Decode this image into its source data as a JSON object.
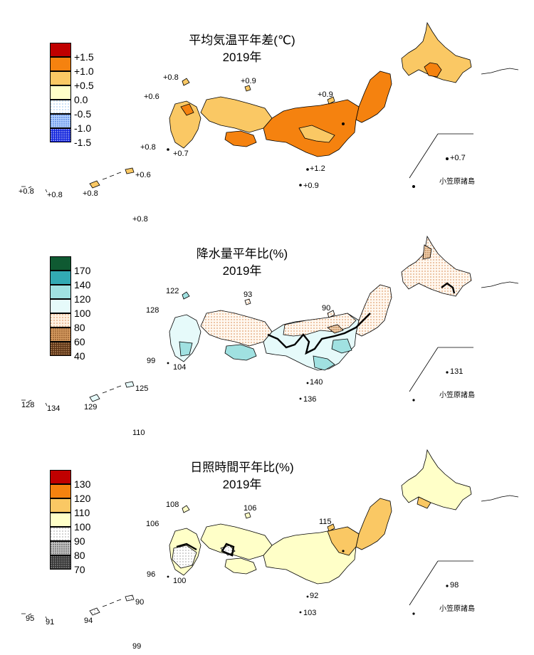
{
  "panels": [
    {
      "title": "平均気温平年差(℃)",
      "year": "2019年",
      "legend": [
        {
          "label": "+1.5",
          "color": "#c00000",
          "pattern": "solid"
        },
        {
          "label": "+1.0",
          "color": "#f5820f",
          "pattern": "solid"
        },
        {
          "label": "+0.5",
          "color": "#fac864",
          "pattern": "solid"
        },
        {
          "label": "0.0",
          "color": "#ffffc8",
          "pattern": "solid"
        },
        {
          "label": "-0.5",
          "color": "#c8e6ff",
          "pattern": "dots-light"
        },
        {
          "label": "-1.0",
          "color": "#6ea0f0",
          "pattern": "dots"
        },
        {
          "label": "-1.5",
          "color": "#0a1edc",
          "pattern": "dots"
        }
      ],
      "values": [
        "+0.8",
        "+0.9",
        "+0.6",
        "+0.9",
        "+0.8",
        "+0.7",
        "+0.7",
        "+1.2",
        "+0.9",
        "+0.8",
        "+0.8",
        "+0.8",
        "+0.6",
        "+0.8"
      ],
      "ogasawara_label": "小笠原諸島",
      "colors": {
        "base": "#fac864",
        "high": "#f5820f",
        "neutral": "#ffffc8"
      }
    },
    {
      "title": "降水量平年比(%)",
      "year": "2019年",
      "legend": [
        {
          "label": "170",
          "color": "#0f5a32",
          "pattern": "solid"
        },
        {
          "label": "140",
          "color": "#32aab4",
          "pattern": "solid"
        },
        {
          "label": "120",
          "color": "#a0e1e1",
          "pattern": "solid"
        },
        {
          "label": "100",
          "color": "#e6fafa",
          "pattern": "solid"
        },
        {
          "label": "80",
          "color": "#f0c8a0",
          "pattern": "dots-light"
        },
        {
          "label": "60",
          "color": "#b4783c",
          "pattern": "dots"
        },
        {
          "label": "40",
          "color": "#5a3214",
          "pattern": "dots"
        }
      ],
      "values": [
        "122",
        "93",
        "128",
        "90",
        "99",
        "104",
        "131",
        "140",
        "136",
        "128",
        "134",
        "129",
        "125",
        "110"
      ],
      "ogasawara_label": "小笠原諸島",
      "colors": {
        "base": "#e6fafa",
        "wet": "#a0e1e1",
        "dry": "#f0c8a0"
      }
    },
    {
      "title": "日照時間平年比(%)",
      "year": "2019年",
      "legend": [
        {
          "label": "130",
          "color": "#c00000",
          "pattern": "solid"
        },
        {
          "label": "120",
          "color": "#f5820f",
          "pattern": "solid"
        },
        {
          "label": "110",
          "color": "#fac864",
          "pattern": "solid"
        },
        {
          "label": "100",
          "color": "#ffffc8",
          "pattern": "solid"
        },
        {
          "label": "90",
          "color": "#e6e6e6",
          "pattern": "dots-light"
        },
        {
          "label": "80",
          "color": "#a0a0a0",
          "pattern": "dots"
        },
        {
          "label": "70",
          "color": "#323232",
          "pattern": "dots"
        }
      ],
      "values": [
        "108",
        "106",
        "106",
        "115",
        "96",
        "100",
        "98",
        "92",
        "103",
        "95",
        "91",
        "94",
        "90",
        "99"
      ],
      "ogasawara_label": "小笠原諸島",
      "colors": {
        "base": "#ffffc8",
        "sunny": "#fac864",
        "dull": "#e6e6e6"
      }
    }
  ]
}
